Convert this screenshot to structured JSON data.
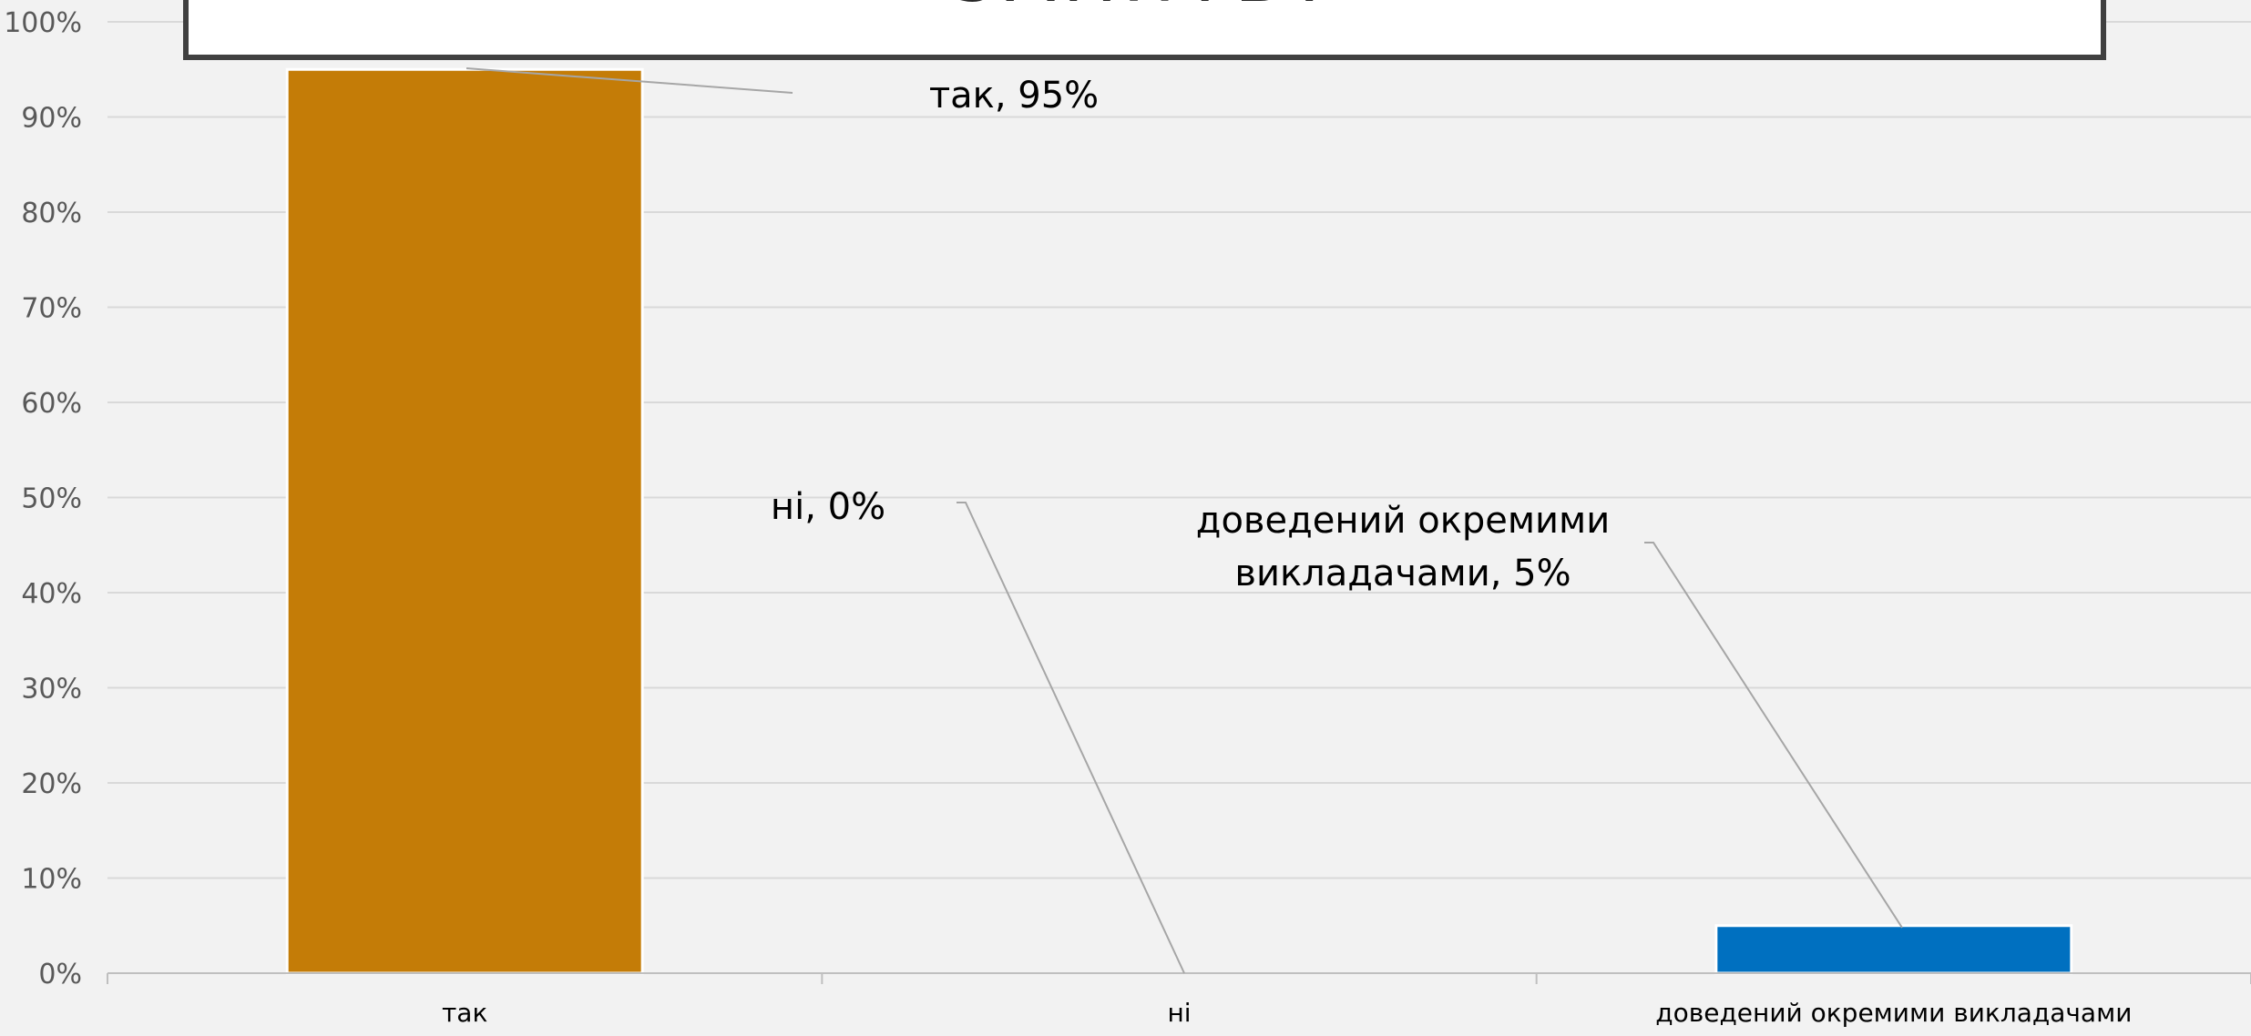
{
  "chart_data": {
    "type": "bar",
    "title": "ЗАНЯТЬ?",
    "categories": [
      "так",
      "ні",
      "доведений окремими викладачами"
    ],
    "values": [
      95,
      0,
      5
    ],
    "bar_colors": [
      "#c47c07",
      "#c47c07",
      "#0070c0"
    ],
    "data_labels": [
      [
        "так, 95%"
      ],
      [
        "ні, 0%"
      ],
      [
        "доведений окремими",
        "викладачами, 5%"
      ]
    ],
    "ylim": [
      0,
      100
    ],
    "y_ticks": [
      "0%",
      "10%",
      "20%",
      "30%",
      "40%",
      "50%",
      "60%",
      "70%",
      "80%",
      "90%",
      "100%"
    ],
    "y_tick_values": [
      0,
      10,
      20,
      30,
      40,
      50,
      60,
      70,
      80,
      90,
      100
    ],
    "grid": true,
    "xlabel": "",
    "ylabel": ""
  }
}
